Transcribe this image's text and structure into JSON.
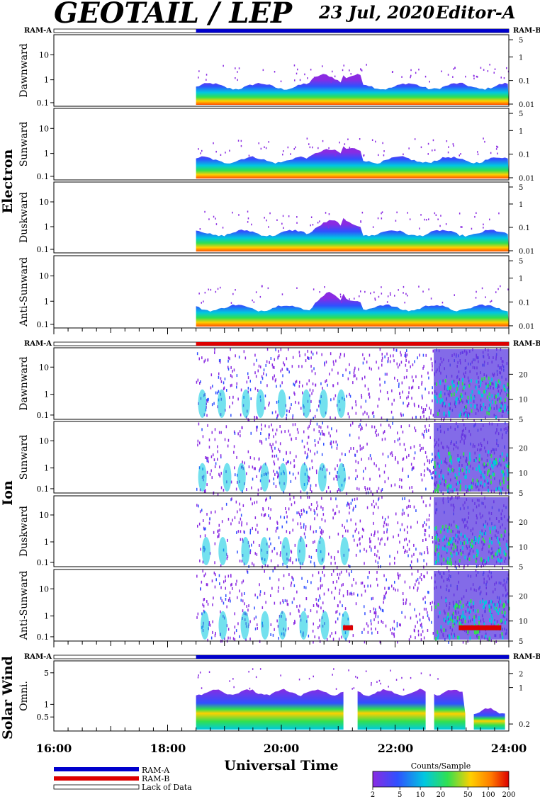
{
  "header": {
    "instrument": "GEOTAIL / LEP",
    "date": "23 Jul, 2020",
    "editor": "Editor-A"
  },
  "ram_labels": {
    "a": "RAM-A",
    "b": "RAM-B"
  },
  "sections": [
    {
      "label": "Electron",
      "panels": [
        "Dawnward",
        "Sunward",
        "Duskward",
        "Anti-Sunward"
      ]
    },
    {
      "label": "Ion",
      "panels": [
        "Dawnward",
        "Sunward",
        "Duskward",
        "Anti-Sunward"
      ]
    },
    {
      "label": "Solar Wind",
      "panels": [
        "Omni."
      ]
    }
  ],
  "x_axis": {
    "title": "Universal Time",
    "ticks": [
      "16:00",
      "18:00",
      "20:00",
      "22:00",
      "24:00"
    ]
  },
  "legend": {
    "ram_a": "RAM-A",
    "ram_b": "RAM-B",
    "lack": "Lack of Data",
    "colorbar_title": "Counts/Sample",
    "colorbar_ticks": [
      "2",
      "5",
      "10",
      "20",
      "50",
      "100",
      "200"
    ]
  },
  "colors": {
    "ram_a": "#0000cc",
    "ram_b": "#dd0000",
    "accent_text": "#000000"
  },
  "chart_data": {
    "type": "heatmap",
    "title": "GEOTAIL / LEP",
    "x_range": [
      "16:00",
      "24:00"
    ],
    "data_start": "18:30",
    "colorscale": {
      "title": "Counts/Sample",
      "range": [
        2,
        200
      ],
      "scale": "log"
    },
    "electron_panels": {
      "left_axis_ticks": [
        "0.1",
        "1",
        "10"
      ],
      "right_axis_ticks": [
        "0.01",
        "0.1",
        "1",
        "5"
      ],
      "left_scale": "log",
      "ram_mode_bar": "RAM-A"
    },
    "ion_panels": {
      "left_axis_ticks": [
        "0.1",
        "1",
        "10"
      ],
      "right_axis_ticks": [
        "5",
        "10",
        "20"
      ],
      "left_scale": "log",
      "ram_mode_bar": "RAM-B"
    },
    "solar_wind_panel": {
      "left_axis_ticks": [
        "0.5",
        "1",
        "5"
      ],
      "right_axis_ticks": [
        "0.2",
        "1",
        "2"
      ],
      "ram_mode_bar": "RAM-A"
    }
  }
}
